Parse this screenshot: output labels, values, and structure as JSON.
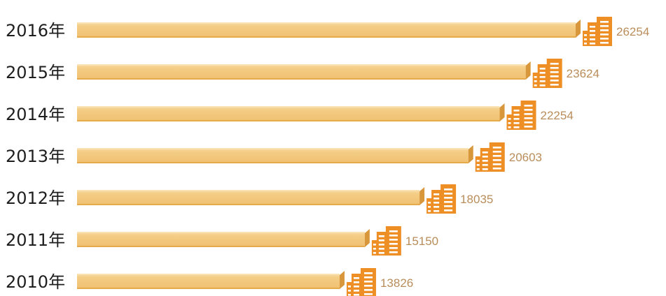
{
  "chart_data": {
    "type": "bar",
    "orientation": "horizontal",
    "categories": [
      "2016年",
      "2015年",
      "2014年",
      "2013年",
      "2012年",
      "2011年",
      "2010年"
    ],
    "values": [
      26254,
      23624,
      22254,
      20603,
      18035,
      15150,
      13826
    ],
    "title": "",
    "xlabel": "",
    "ylabel": "",
    "grid": false,
    "legend": "none",
    "marker_icon": "building-icon"
  },
  "colors": {
    "bar_top": "#f4d08e",
    "bar_front": "#f2c477",
    "bar_bottom_edge": "#e7aa4a",
    "bar_side": "#d9973c",
    "icon": "#ee8f26",
    "value_text": "#b98d5a",
    "label_text": "#1e1e1e"
  }
}
